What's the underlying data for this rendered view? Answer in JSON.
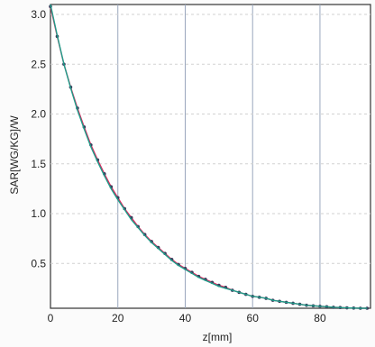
{
  "chart_data": {
    "type": "line",
    "title": "",
    "xlabel": "z[mm]",
    "ylabel": "SAR[WG/KG]/W",
    "xlim": [
      0,
      95
    ],
    "ylim": [
      0.05,
      3.1
    ],
    "xticks": [
      0,
      20,
      40,
      60,
      80
    ],
    "xtick_labels": [
      "0",
      "20",
      "40",
      "60",
      "80"
    ],
    "yticks": [
      0.5,
      1.0,
      1.5,
      2.0,
      2.5,
      3.0
    ],
    "ytick_labels": [
      "0.5",
      "1.0",
      "1.5",
      "2.0",
      "2.5",
      "3.0"
    ],
    "grid": true,
    "legend": "none",
    "series": [
      {
        "color": "#e0245e",
        "marker": "dot",
        "x": [
          0,
          2,
          4,
          6,
          8,
          10,
          12,
          14,
          16,
          18,
          20,
          22,
          24,
          26,
          28,
          30,
          32,
          34,
          36,
          38,
          40,
          42,
          44,
          46,
          48,
          50,
          52,
          54,
          56,
          58,
          60,
          62,
          64,
          66,
          68,
          70,
          72,
          74,
          76,
          78,
          80,
          82,
          84,
          86,
          88,
          90,
          92,
          94
        ],
        "y": [
          3.08,
          2.78,
          2.5,
          2.27,
          2.06,
          1.87,
          1.69,
          1.54,
          1.4,
          1.27,
          1.16,
          1.05,
          0.96,
          0.87,
          0.79,
          0.72,
          0.66,
          0.6,
          0.54,
          0.49,
          0.45,
          0.41,
          0.37,
          0.34,
          0.31,
          0.28,
          0.26,
          0.23,
          0.21,
          0.19,
          0.17,
          0.16,
          0.15,
          0.13,
          0.12,
          0.11,
          0.1,
          0.09,
          0.08,
          0.075,
          0.07,
          0.065,
          0.06,
          0.057,
          0.054,
          0.052,
          0.05,
          0.05
        ]
      },
      {
        "color": "#1e9e8a",
        "marker": "none",
        "x": [
          0,
          2,
          4,
          6,
          8,
          10,
          12,
          14,
          16,
          18,
          20,
          22,
          24,
          26,
          28,
          30,
          32,
          34,
          36,
          38,
          40,
          42,
          44,
          46,
          48,
          50,
          52,
          54,
          56,
          58,
          60,
          62,
          64,
          66,
          68,
          70,
          72,
          74,
          76,
          78,
          80,
          82,
          84,
          86,
          88,
          90,
          92,
          94
        ],
        "y": [
          3.1,
          2.79,
          2.5,
          2.26,
          2.04,
          1.85,
          1.67,
          1.52,
          1.38,
          1.25,
          1.14,
          1.04,
          0.94,
          0.86,
          0.78,
          0.71,
          0.65,
          0.59,
          0.53,
          0.48,
          0.44,
          0.4,
          0.36,
          0.33,
          0.3,
          0.27,
          0.25,
          0.23,
          0.21,
          0.19,
          0.17,
          0.16,
          0.15,
          0.13,
          0.12,
          0.11,
          0.1,
          0.09,
          0.08,
          0.075,
          0.07,
          0.065,
          0.06,
          0.057,
          0.054,
          0.052,
          0.05,
          0.05
        ]
      }
    ]
  }
}
